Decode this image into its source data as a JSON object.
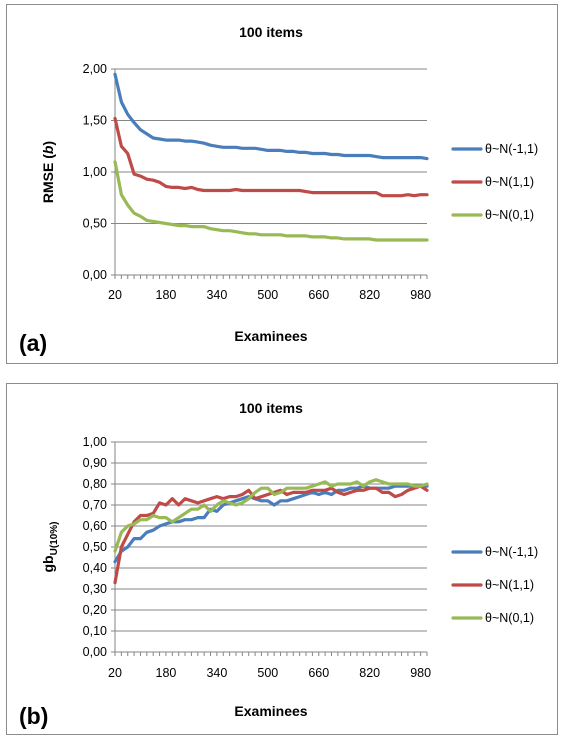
{
  "chart_data": [
    {
      "type": "line",
      "panel_label": "(a)",
      "title": "100 items",
      "xlabel": "Examinees",
      "ylabel": "RMSE (b)",
      "ylabel_main": "RMSE (",
      "ylabel_italic": "b",
      "ylabel_close": ")",
      "ylim": [
        0,
        2
      ],
      "yticks": [
        "0,00",
        "0,50",
        "1,00",
        "1,50",
        "2,00"
      ],
      "ytick_values": [
        0,
        0.5,
        1.0,
        1.5,
        2.0
      ],
      "xlim": [
        20,
        1000
      ],
      "xticks": [
        "20",
        "180",
        "340",
        "500",
        "660",
        "820",
        "980"
      ],
      "xtick_values": [
        20,
        180,
        340,
        500,
        660,
        820,
        980
      ],
      "grid": "horizontal",
      "legend_position": "right",
      "series": [
        {
          "name": "θ~N(-1,1)",
          "color": "#4a7ebb",
          "x": [
            20,
            40,
            60,
            80,
            100,
            120,
            140,
            160,
            180,
            200,
            220,
            240,
            260,
            280,
            300,
            320,
            340,
            360,
            380,
            400,
            420,
            440,
            460,
            480,
            500,
            520,
            540,
            560,
            580,
            600,
            620,
            640,
            660,
            680,
            700,
            720,
            740,
            760,
            780,
            800,
            820,
            840,
            860,
            880,
            900,
            920,
            940,
            960,
            980,
            1000
          ],
          "values": [
            1.95,
            1.68,
            1.56,
            1.48,
            1.41,
            1.37,
            1.33,
            1.32,
            1.31,
            1.31,
            1.31,
            1.3,
            1.3,
            1.29,
            1.28,
            1.26,
            1.25,
            1.24,
            1.24,
            1.24,
            1.23,
            1.23,
            1.23,
            1.22,
            1.21,
            1.21,
            1.21,
            1.2,
            1.2,
            1.19,
            1.19,
            1.18,
            1.18,
            1.18,
            1.17,
            1.17,
            1.16,
            1.16,
            1.16,
            1.16,
            1.16,
            1.15,
            1.14,
            1.14,
            1.14,
            1.14,
            1.14,
            1.14,
            1.14,
            1.13
          ]
        },
        {
          "name": "θ~N(1,1)",
          "color": "#be4b48",
          "x": [
            20,
            40,
            60,
            80,
            100,
            120,
            140,
            160,
            180,
            200,
            220,
            240,
            260,
            280,
            300,
            320,
            340,
            360,
            380,
            400,
            420,
            440,
            460,
            480,
            500,
            520,
            540,
            560,
            580,
            600,
            620,
            640,
            660,
            680,
            700,
            720,
            740,
            760,
            780,
            800,
            820,
            840,
            860,
            880,
            900,
            920,
            940,
            960,
            980,
            1000
          ],
          "values": [
            1.52,
            1.25,
            1.18,
            0.98,
            0.96,
            0.93,
            0.92,
            0.9,
            0.86,
            0.85,
            0.85,
            0.84,
            0.85,
            0.83,
            0.82,
            0.82,
            0.82,
            0.82,
            0.82,
            0.83,
            0.82,
            0.82,
            0.82,
            0.82,
            0.82,
            0.82,
            0.82,
            0.82,
            0.82,
            0.82,
            0.81,
            0.8,
            0.8,
            0.8,
            0.8,
            0.8,
            0.8,
            0.8,
            0.8,
            0.8,
            0.8,
            0.8,
            0.77,
            0.77,
            0.77,
            0.77,
            0.78,
            0.77,
            0.78,
            0.78
          ]
        },
        {
          "name": "θ~N(0,1)",
          "color": "#98b954",
          "x": [
            20,
            40,
            60,
            80,
            100,
            120,
            140,
            160,
            180,
            200,
            220,
            240,
            260,
            280,
            300,
            320,
            340,
            360,
            380,
            400,
            420,
            440,
            460,
            480,
            500,
            520,
            540,
            560,
            580,
            600,
            620,
            640,
            660,
            680,
            700,
            720,
            740,
            760,
            780,
            800,
            820,
            840,
            860,
            880,
            900,
            920,
            940,
            960,
            980,
            1000
          ],
          "values": [
            1.1,
            0.78,
            0.68,
            0.6,
            0.57,
            0.53,
            0.52,
            0.51,
            0.5,
            0.49,
            0.48,
            0.48,
            0.47,
            0.47,
            0.47,
            0.45,
            0.44,
            0.43,
            0.43,
            0.42,
            0.41,
            0.4,
            0.4,
            0.39,
            0.39,
            0.39,
            0.39,
            0.38,
            0.38,
            0.38,
            0.38,
            0.37,
            0.37,
            0.37,
            0.36,
            0.36,
            0.35,
            0.35,
            0.35,
            0.35,
            0.35,
            0.34,
            0.34,
            0.34,
            0.34,
            0.34,
            0.34,
            0.34,
            0.34,
            0.34
          ]
        }
      ]
    },
    {
      "type": "line",
      "panel_label": "(b)",
      "title": "100 items",
      "xlabel": "Examinees",
      "ylabel": "gbU(10%)",
      "ylabel_main": "gb",
      "ylabel_sub": "U(10%)",
      "ylim": [
        0,
        1
      ],
      "yticks": [
        "0,00",
        "0,10",
        "0,20",
        "0,30",
        "0,40",
        "0,50",
        "0,60",
        "0,70",
        "0,80",
        "0,90",
        "1,00"
      ],
      "ytick_values": [
        0,
        0.1,
        0.2,
        0.3,
        0.4,
        0.5,
        0.6,
        0.7,
        0.8,
        0.9,
        1.0
      ],
      "xlim": [
        20,
        1000
      ],
      "xticks": [
        "20",
        "180",
        "340",
        "500",
        "660",
        "820",
        "980"
      ],
      "xtick_values": [
        20,
        180,
        340,
        500,
        660,
        820,
        980
      ],
      "grid": "horizontal",
      "legend_position": "right",
      "series": [
        {
          "name": "θ~N(-1,1)",
          "color": "#4a7ebb",
          "x": [
            20,
            40,
            60,
            80,
            100,
            120,
            140,
            160,
            180,
            200,
            220,
            240,
            260,
            280,
            300,
            320,
            340,
            360,
            380,
            400,
            420,
            440,
            460,
            480,
            500,
            520,
            540,
            560,
            580,
            600,
            620,
            640,
            660,
            680,
            700,
            720,
            740,
            760,
            780,
            800,
            820,
            840,
            860,
            880,
            900,
            920,
            940,
            960,
            980,
            1000
          ],
          "values": [
            0.43,
            0.48,
            0.5,
            0.54,
            0.54,
            0.57,
            0.58,
            0.6,
            0.61,
            0.62,
            0.62,
            0.63,
            0.63,
            0.64,
            0.64,
            0.68,
            0.67,
            0.7,
            0.71,
            0.72,
            0.73,
            0.74,
            0.73,
            0.72,
            0.72,
            0.7,
            0.72,
            0.72,
            0.73,
            0.74,
            0.75,
            0.76,
            0.75,
            0.76,
            0.75,
            0.77,
            0.77,
            0.78,
            0.78,
            0.79,
            0.78,
            0.78,
            0.78,
            0.78,
            0.79,
            0.79,
            0.79,
            0.79,
            0.79,
            0.79
          ]
        },
        {
          "name": "θ~N(1,1)",
          "color": "#be4b48",
          "x": [
            20,
            40,
            60,
            80,
            100,
            120,
            140,
            160,
            180,
            200,
            220,
            240,
            260,
            280,
            300,
            320,
            340,
            360,
            380,
            400,
            420,
            440,
            460,
            480,
            500,
            520,
            540,
            560,
            580,
            600,
            620,
            640,
            660,
            680,
            700,
            720,
            740,
            760,
            780,
            800,
            820,
            840,
            860,
            880,
            900,
            920,
            940,
            960,
            980,
            1000
          ],
          "values": [
            0.33,
            0.5,
            0.56,
            0.62,
            0.65,
            0.65,
            0.66,
            0.71,
            0.7,
            0.73,
            0.7,
            0.73,
            0.72,
            0.71,
            0.72,
            0.73,
            0.74,
            0.73,
            0.74,
            0.74,
            0.75,
            0.77,
            0.73,
            0.74,
            0.75,
            0.76,
            0.77,
            0.75,
            0.76,
            0.76,
            0.76,
            0.77,
            0.77,
            0.77,
            0.78,
            0.76,
            0.75,
            0.76,
            0.77,
            0.77,
            0.78,
            0.78,
            0.76,
            0.76,
            0.74,
            0.75,
            0.77,
            0.78,
            0.79,
            0.77
          ]
        },
        {
          "name": "θ~N(0,1)",
          "color": "#98b954",
          "x": [
            20,
            40,
            60,
            80,
            100,
            120,
            140,
            160,
            180,
            200,
            220,
            240,
            260,
            280,
            300,
            320,
            340,
            360,
            380,
            400,
            420,
            440,
            460,
            480,
            500,
            520,
            540,
            560,
            580,
            600,
            620,
            640,
            660,
            680,
            700,
            720,
            740,
            760,
            780,
            800,
            820,
            840,
            860,
            880,
            900,
            920,
            940,
            960,
            980,
            1000
          ],
          "values": [
            0.48,
            0.57,
            0.6,
            0.61,
            0.63,
            0.63,
            0.65,
            0.64,
            0.64,
            0.62,
            0.64,
            0.66,
            0.68,
            0.68,
            0.7,
            0.67,
            0.7,
            0.72,
            0.71,
            0.7,
            0.71,
            0.73,
            0.76,
            0.78,
            0.78,
            0.75,
            0.76,
            0.78,
            0.78,
            0.78,
            0.78,
            0.79,
            0.8,
            0.81,
            0.79,
            0.8,
            0.8,
            0.8,
            0.81,
            0.79,
            0.81,
            0.82,
            0.81,
            0.8,
            0.8,
            0.8,
            0.8,
            0.79,
            0.79,
            0.8
          ]
        }
      ]
    }
  ]
}
